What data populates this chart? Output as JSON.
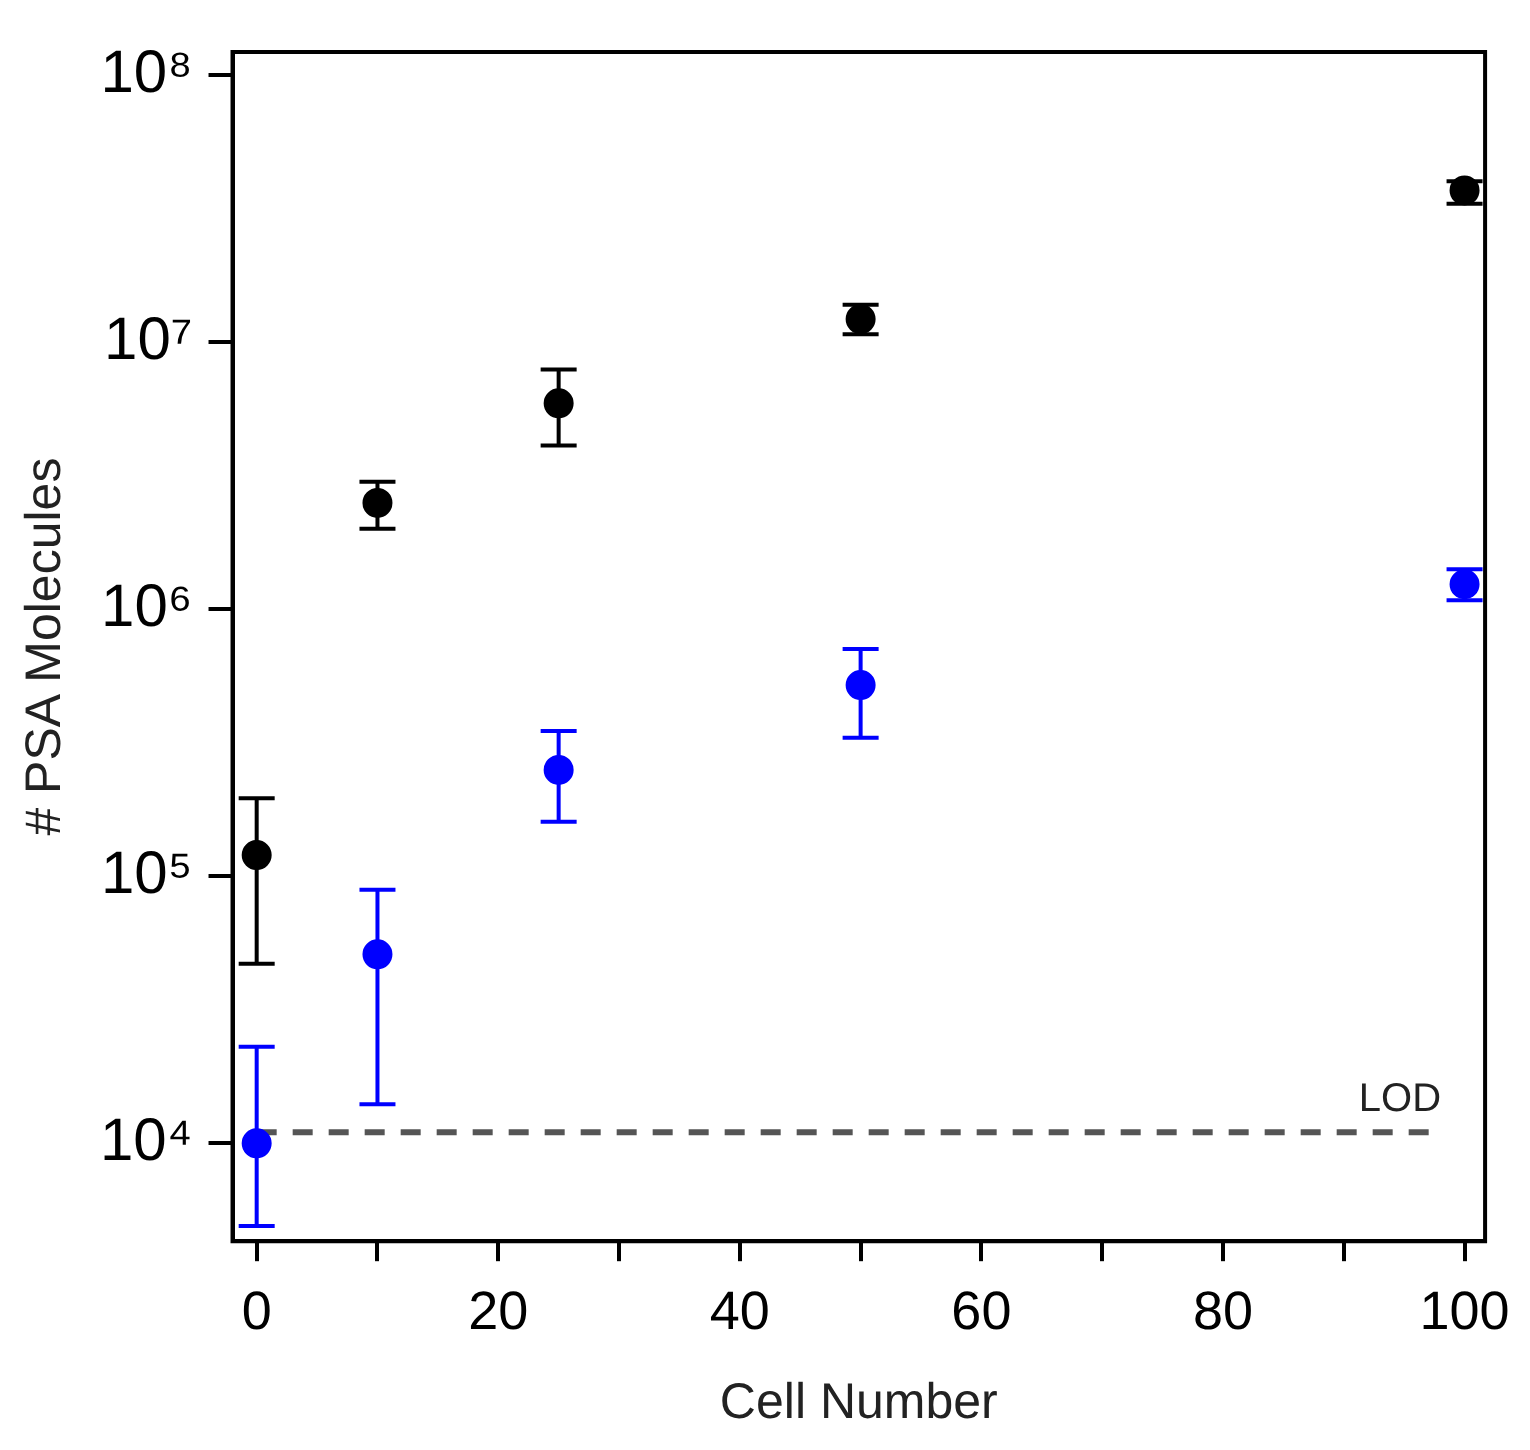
{
  "chart_data": {
    "type": "scatter",
    "xlabel": "Cell Number",
    "ylabel": "# PSA Molecules",
    "x": [
      0,
      10,
      25,
      50,
      100
    ],
    "series": [
      {
        "color": "#000000",
        "values": [
          120000,
          2500000,
          5900000,
          12200000,
          37000000
        ],
        "errors": [
          [
            47000,
            196000
          ],
          [
            2000000,
            3000000
          ],
          [
            4100000,
            7900000
          ],
          [
            10700000,
            13800000
          ],
          [
            33000000,
            40000000
          ]
        ]
      },
      {
        "color": "#0000ff",
        "values": [
          10000,
          51000,
          250000,
          520000,
          1240000
        ],
        "errors": [
          [
            4900,
            23000
          ],
          [
            14000,
            89000
          ],
          [
            160000,
            350000
          ],
          [
            330000,
            710000
          ],
          [
            1080000,
            1410000
          ]
        ]
      }
    ],
    "log": "y",
    "xlim": [
      -2,
      101.7
    ],
    "ylim": [
      4300,
      122000000
    ],
    "xticks": [
      0,
      {
        "value": 10,
        "label": null
      },
      20,
      {
        "value": 30,
        "label": null
      },
      40,
      {
        "value": 50,
        "label": null
      },
      60,
      {
        "value": 70,
        "label": null
      },
      80,
      {
        "value": 90,
        "label": null
      },
      100
    ],
    "yticks": [
      {
        "value": 10000,
        "label": "10⁴"
      },
      {
        "value": 100000,
        "label": "10⁵"
      },
      {
        "value": 1000000,
        "label": "10⁶"
      },
      {
        "value": 10000000,
        "label": "10⁷"
      },
      {
        "value": 100000000,
        "label": "10⁸"
      }
    ],
    "ref_lines": [
      {
        "axis": "y",
        "value": 11000,
        "label": "LOD",
        "color": "#555555",
        "line_style": "dashed"
      }
    ],
    "grid": false,
    "legend": false,
    "marker": "circle"
  }
}
